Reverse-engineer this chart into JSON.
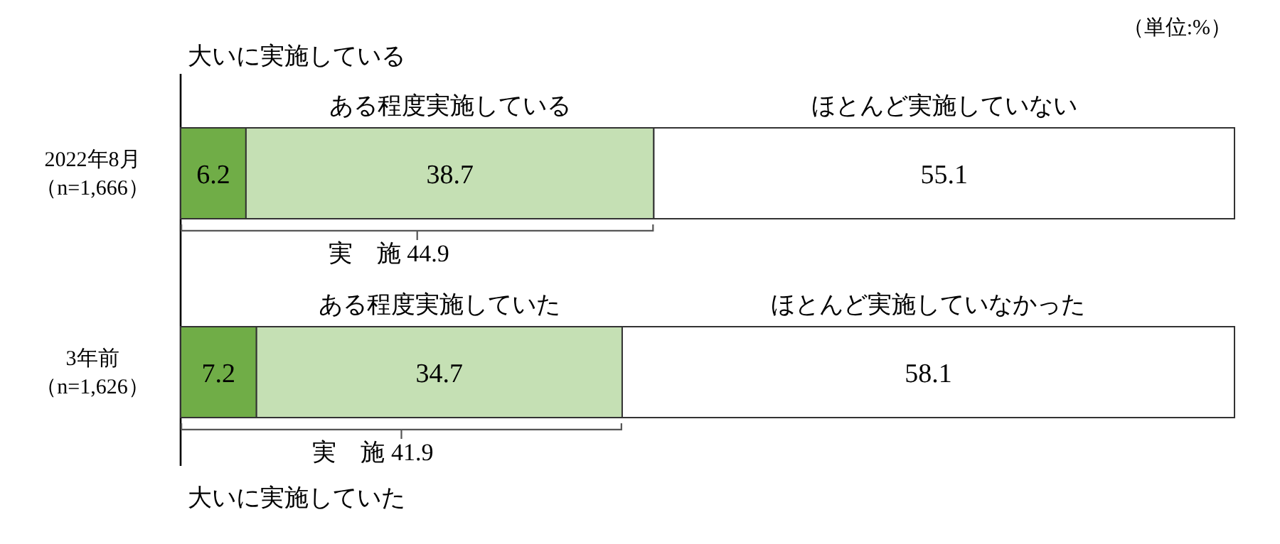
{
  "chart_data": {
    "type": "bar",
    "orientation": "horizontal",
    "stacked": true,
    "data_labels": true,
    "xlim": [
      0,
      100
    ],
    "categories": [
      "2022年8月（n=1,666）",
      "3年前（n=1,626）"
    ],
    "series": [
      {
        "color": "#70ad47",
        "values": [
          6.2,
          7.2
        ]
      },
      {
        "color": "#c5e0b4",
        "values": [
          38.7,
          34.7
        ]
      },
      {
        "color": "#ffffff",
        "values": [
          55.1,
          58.1
        ]
      }
    ],
    "annotations": [
      "（単位:%）",
      "大いに実施している",
      "ある程度実施している",
      "ほとんど実施していない",
      "実　施 44.9",
      "ある程度実施していた",
      "ほとんど実施していなかった",
      "実　施 41.9",
      "大いに実施していた"
    ]
  }
}
